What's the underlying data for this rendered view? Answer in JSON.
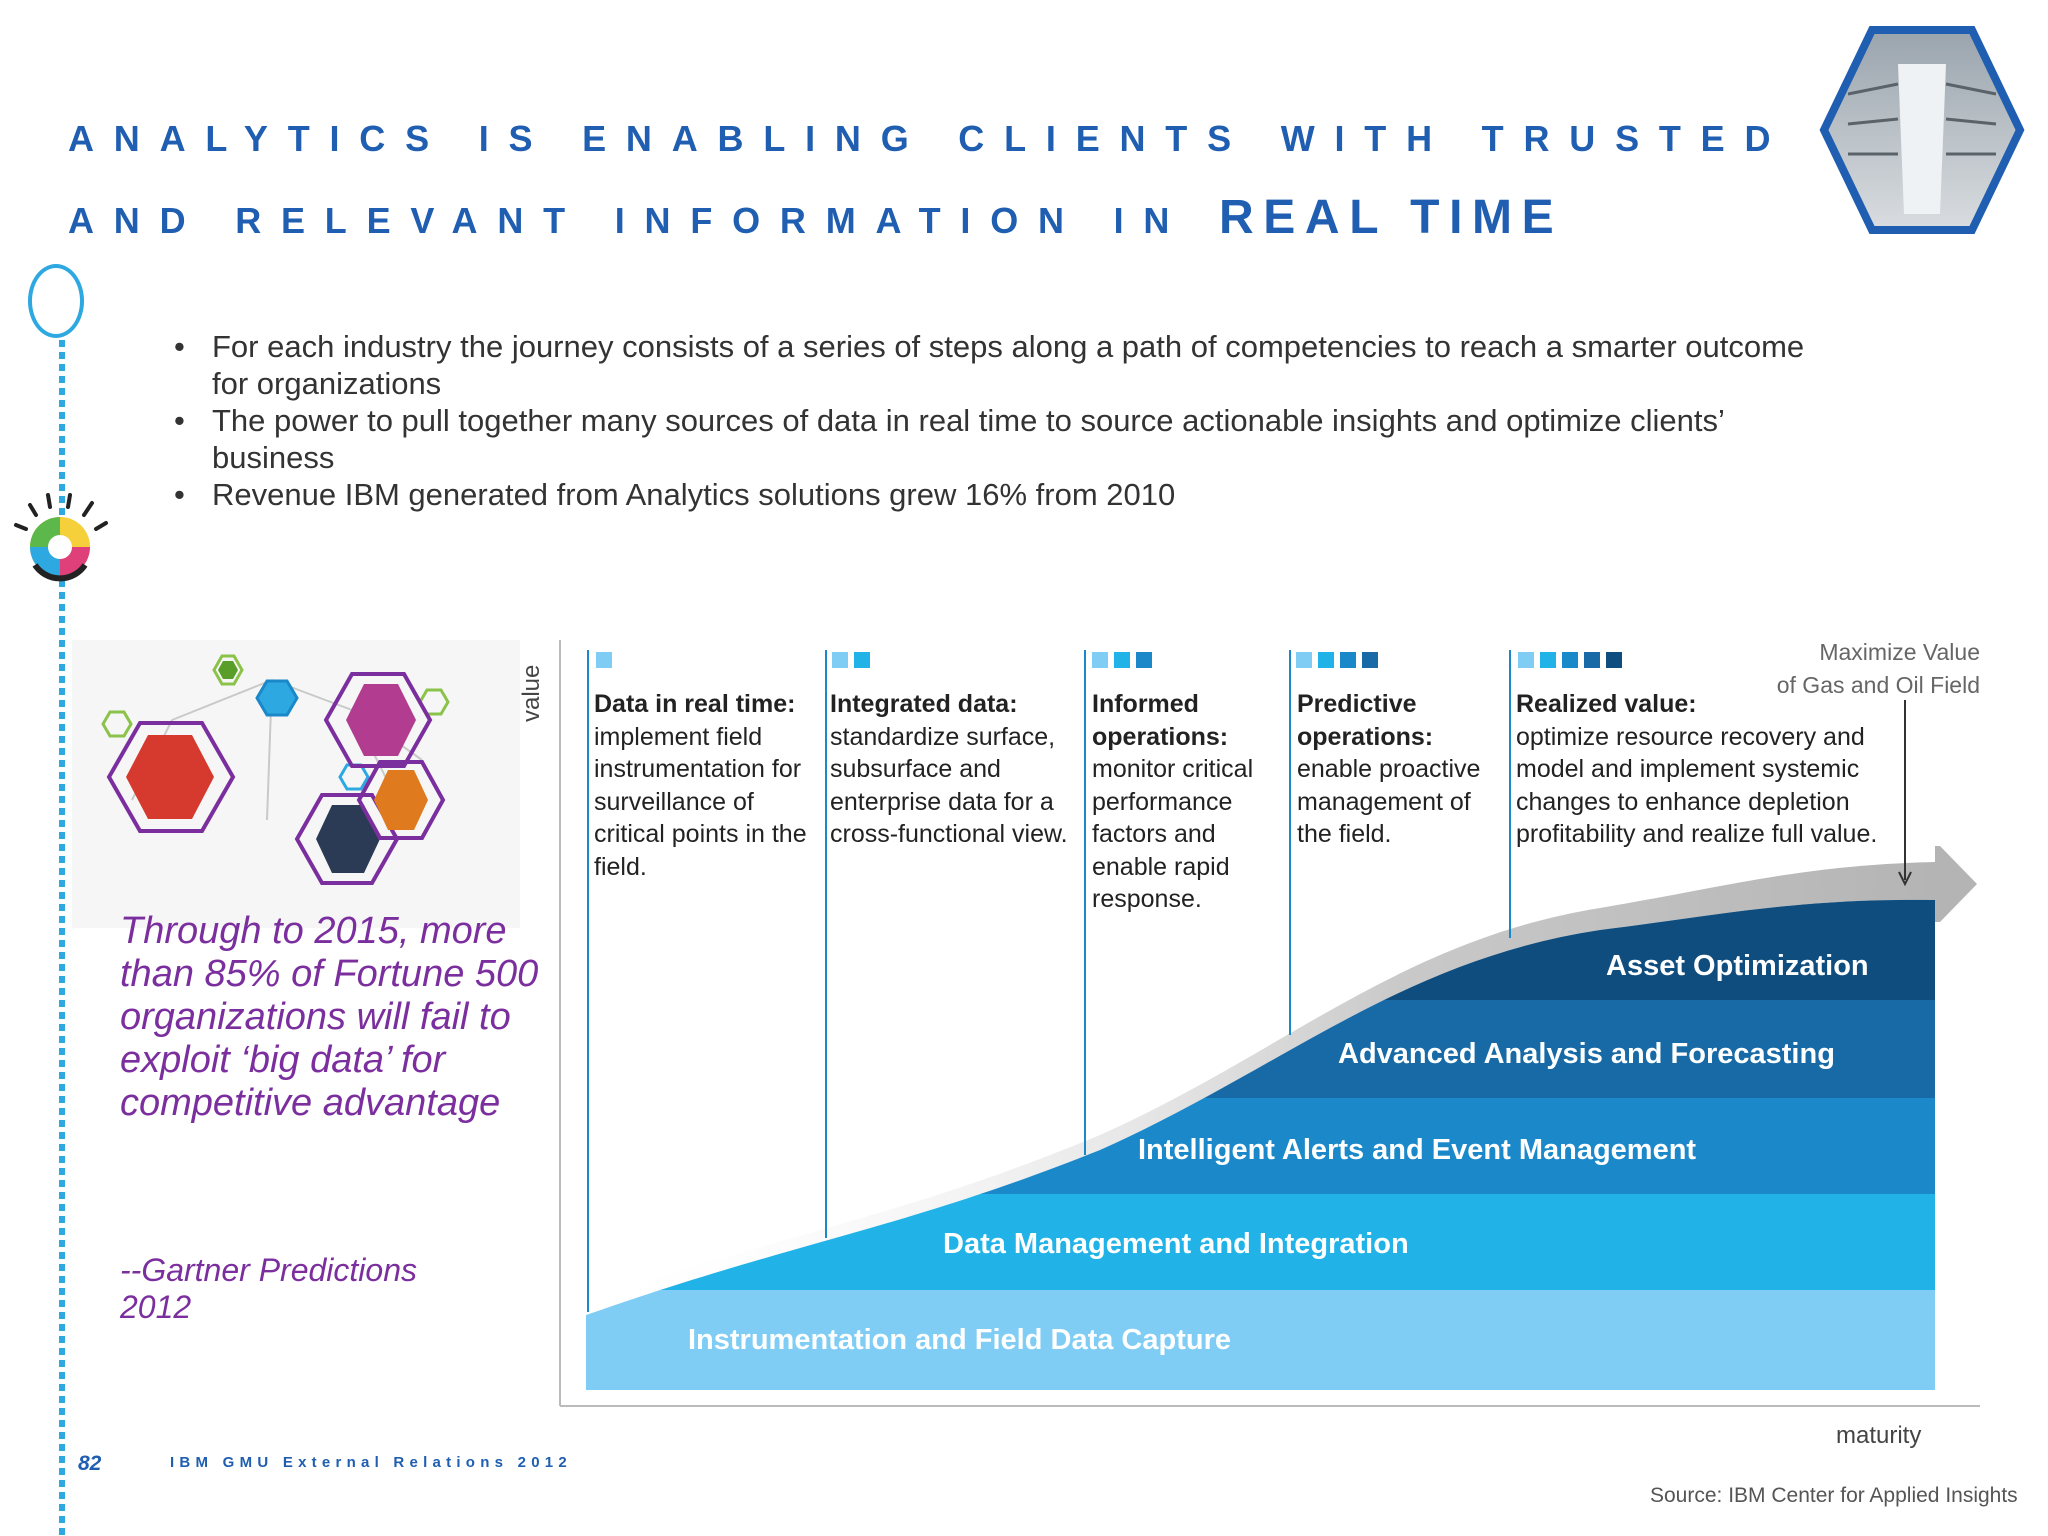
{
  "title": {
    "line1": "Analytics is enabling clients with trusted",
    "line2_prefix": "and relevant information in",
    "line2_emphasis": "REAL TIME"
  },
  "bullets": [
    "For each industry the journey consists of a series of steps along a path of competencies to reach a smarter outcome for organizations",
    "The power to pull together many sources of data in real time to source actionable insights and optimize clients’ business",
    "Revenue IBM generated from Analytics solutions grew 16% from 2010"
  ],
  "quote": {
    "text": "Through to 2015, more than 85% of Fortune  500 organizations will fail to exploit ‘big data’ for competitive advantage",
    "source": "--Gartner Predictions 2012"
  },
  "diagram": {
    "y_axis": "value",
    "x_axis": "maturity",
    "annotation_line1": "Maximize Value",
    "annotation_line2": "of Gas and Oil Field",
    "stages": [
      {
        "heading": "Data in real time:",
        "text": "implement field instrumentation for surveillance of critical points in the field.",
        "squares": 1
      },
      {
        "heading": "Integrated data:",
        "text": "standardize surface, subsurface and enterprise data for a cross-functional view.",
        "squares": 2
      },
      {
        "heading": "Informed operations:",
        "text": "monitor critical performance factors and enable rapid response.",
        "squares": 3
      },
      {
        "heading": "Predictive operations:",
        "text": "enable proactive management of the field.",
        "squares": 4
      },
      {
        "heading": "Realized value:",
        "text": "optimize resource recovery and model and implement systemic changes to enhance depletion profitability and realize full value.",
        "squares": 5
      }
    ],
    "layers": [
      "Asset Optimization",
      "Advanced Analysis and Forecasting",
      "Intelligent Alerts and Event Management",
      "Data Management and Integration",
      "Instrumentation and Field Data Capture"
    ],
    "source": "Source:  IBM Center for Applied Insights"
  },
  "colors": {
    "title": "#1f5eb0",
    "quote": "#7b2f9e",
    "layer1": "#7fcdf5",
    "layer2": "#21b3e8",
    "layer3": "#1a88c9",
    "layer4": "#176aa6",
    "layer5": "#0f4d7e"
  },
  "footer": {
    "page": "82",
    "label": "IBM GMU External Relations 2012"
  }
}
